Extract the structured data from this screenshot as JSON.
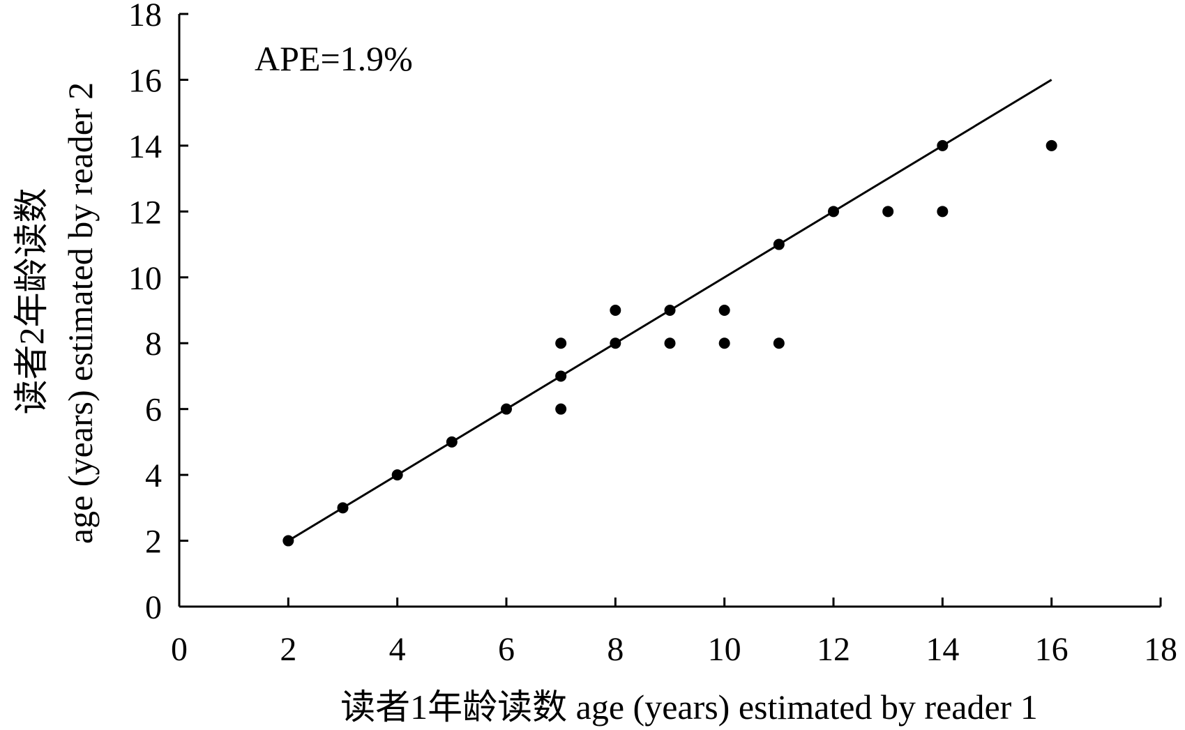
{
  "chart_data": {
    "type": "scatter",
    "title": "",
    "annotation": "APE=1.9%",
    "xlabel_line1": "读者1年龄读数 age (years) estimated by reader 1",
    "ylabel_line1": "读者2年龄读数",
    "ylabel_line2": "age (years) estimated by reader 2",
    "xlim": [
      0,
      18
    ],
    "ylim": [
      0,
      18
    ],
    "xticks": [
      0,
      2,
      4,
      6,
      8,
      10,
      12,
      14,
      16,
      18
    ],
    "yticks": [
      0,
      2,
      4,
      6,
      8,
      10,
      12,
      14,
      16,
      18
    ],
    "grid": false,
    "reference_line": {
      "x": [
        2,
        16
      ],
      "y": [
        2,
        16
      ]
    },
    "points": [
      {
        "x": 2,
        "y": 2
      },
      {
        "x": 3,
        "y": 3
      },
      {
        "x": 4,
        "y": 4
      },
      {
        "x": 5,
        "y": 5
      },
      {
        "x": 6,
        "y": 6
      },
      {
        "x": 7,
        "y": 6
      },
      {
        "x": 7,
        "y": 7
      },
      {
        "x": 7,
        "y": 8
      },
      {
        "x": 8,
        "y": 8
      },
      {
        "x": 8,
        "y": 9
      },
      {
        "x": 9,
        "y": 8
      },
      {
        "x": 9,
        "y": 9
      },
      {
        "x": 10,
        "y": 8
      },
      {
        "x": 10,
        "y": 9
      },
      {
        "x": 11,
        "y": 8
      },
      {
        "x": 11,
        "y": 11
      },
      {
        "x": 12,
        "y": 12
      },
      {
        "x": 13,
        "y": 12
      },
      {
        "x": 14,
        "y": 12
      },
      {
        "x": 14,
        "y": 14
      },
      {
        "x": 16,
        "y": 14
      }
    ],
    "colors": {
      "marker": "#000000",
      "line": "#000000"
    }
  }
}
